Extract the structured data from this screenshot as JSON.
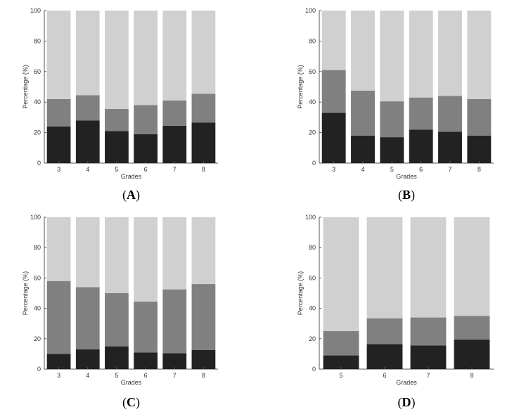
{
  "colors": {
    "bottom": "#222222",
    "middle": "#808080",
    "top": "#d0d0d0",
    "axis": "#555555",
    "text": "#333333"
  },
  "chart_data": [
    {
      "type": "bar",
      "stacked": true,
      "panel_label": "A",
      "categories": [
        "3",
        "4",
        "5",
        "6",
        "7",
        "8"
      ],
      "xlabel": "Grades",
      "ylabel": "Percentage (%)",
      "ylim": [
        0,
        100
      ],
      "yticks": [
        0,
        20,
        40,
        60,
        80,
        100
      ],
      "grid": false,
      "series": [
        {
          "values": [
            24,
            28,
            21,
            19,
            24.5,
            26.5
          ]
        },
        {
          "values": [
            18,
            16.5,
            14.5,
            19,
            16.5,
            19
          ]
        },
        {
          "values": [
            58,
            55.5,
            64.5,
            62,
            59,
            54.5
          ]
        }
      ]
    },
    {
      "type": "bar",
      "stacked": true,
      "panel_label": "B",
      "categories": [
        "3",
        "4",
        "5",
        "6",
        "7",
        "8"
      ],
      "xlabel": "Grades",
      "ylabel": "Percentage (%)",
      "ylim": [
        0,
        100
      ],
      "yticks": [
        0,
        20,
        40,
        60,
        80,
        100
      ],
      "grid": false,
      "series": [
        {
          "values": [
            33,
            18,
            17,
            22,
            20.5,
            18
          ]
        },
        {
          "values": [
            28,
            29.5,
            23.5,
            21,
            23.5,
            24
          ]
        },
        {
          "values": [
            39,
            52.5,
            59.5,
            57,
            56,
            58
          ]
        }
      ]
    },
    {
      "type": "bar",
      "stacked": true,
      "panel_label": "C",
      "categories": [
        "3",
        "4",
        "5",
        "6",
        "7",
        "8"
      ],
      "xlabel": "Grades",
      "ylabel": "Percentage (%)",
      "ylim": [
        0,
        100
      ],
      "yticks": [
        0,
        20,
        40,
        60,
        80,
        100
      ],
      "grid": false,
      "series": [
        {
          "values": [
            10,
            13,
            15,
            11,
            10.5,
            12.5
          ]
        },
        {
          "values": [
            48,
            41,
            35,
            33.5,
            42,
            43.5
          ]
        },
        {
          "values": [
            42,
            46,
            50,
            55.5,
            47.5,
            44
          ]
        }
      ]
    },
    {
      "type": "bar",
      "stacked": true,
      "panel_label": "D",
      "categories": [
        "5",
        "6",
        "7",
        "8"
      ],
      "xlabel": "Grades",
      "ylabel": "Percentage (%)",
      "ylim": [
        0,
        100
      ],
      "yticks": [
        0,
        20,
        40,
        60,
        80,
        100
      ],
      "grid": false,
      "series": [
        {
          "values": [
            9,
            16.5,
            15.5,
            19.5
          ]
        },
        {
          "values": [
            16,
            17,
            18.5,
            15.5
          ]
        },
        {
          "values": [
            75,
            66.5,
            66,
            65
          ]
        }
      ]
    }
  ]
}
